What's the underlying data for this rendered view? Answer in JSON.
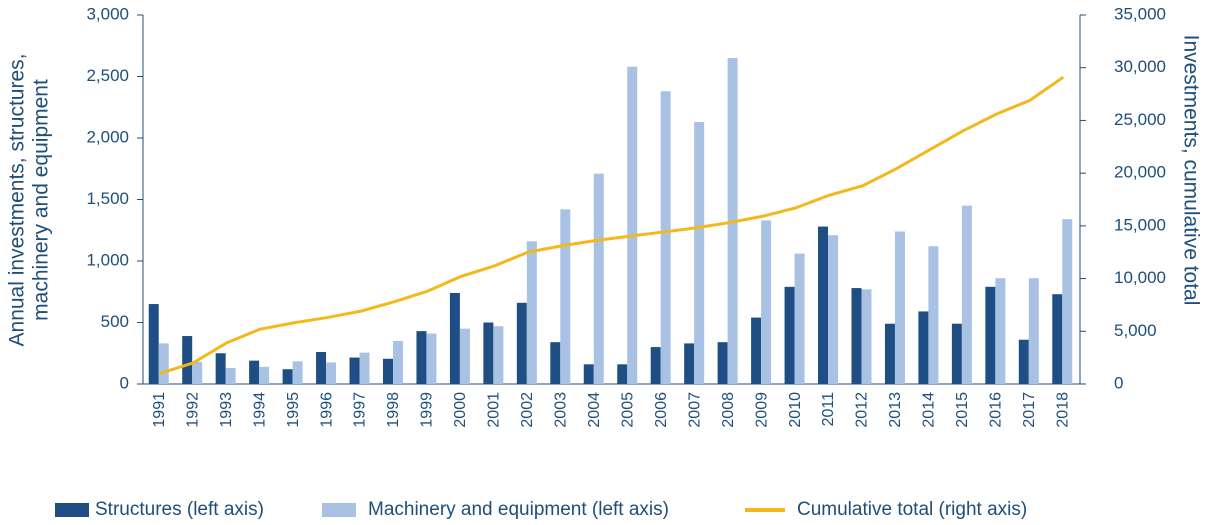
{
  "chart_data": {
    "type": "bar",
    "ylabel": [
      "Annual investments, structures,",
      "machinery and equipment"
    ],
    "y2label": "Investments, cumulative total",
    "categories": [
      "1991",
      "1992",
      "1993",
      "1994",
      "1995",
      "1996",
      "1997",
      "1998",
      "1999",
      "2000",
      "2001",
      "2002",
      "2003",
      "2004",
      "2005",
      "2006",
      "2007",
      "2008",
      "2009",
      "2010",
      "2011",
      "2012",
      "2013",
      "2014",
      "2015",
      "2016",
      "2017",
      "2018"
    ],
    "series": [
      {
        "name": "Structures (left axis)",
        "type": "bar",
        "color": "#1f4e85",
        "values": [
          650,
          390,
          250,
          190,
          120,
          260,
          215,
          205,
          430,
          740,
          500,
          660,
          340,
          160,
          160,
          300,
          330,
          340,
          540,
          790,
          1280,
          780,
          490,
          590,
          490,
          790,
          360,
          730
        ]
      },
      {
        "name": "Machinery and equipment (left axis)",
        "type": "bar",
        "color": "#a9c1e3",
        "values": [
          330,
          180,
          130,
          140,
          185,
          175,
          255,
          350,
          410,
          450,
          470,
          1160,
          1420,
          1710,
          2580,
          2380,
          2130,
          2650,
          1330,
          1060,
          1210,
          770,
          1240,
          1120,
          1450,
          860,
          860,
          1340
        ]
      },
      {
        "name": "Cumulative total (right axis)",
        "type": "line",
        "axis": "y2",
        "color": "#f2b81c",
        "values": [
          1000,
          2000,
          3900,
          5200,
          5800,
          6300,
          6900,
          7800,
          8800,
          10200,
          11200,
          12500,
          13100,
          13600,
          14000,
          14400,
          14800,
          15300,
          15900,
          16700,
          17900,
          18800,
          20400,
          22200,
          24000,
          25600,
          26900,
          29100
        ]
      }
    ],
    "ylim": [
      0,
      3000
    ],
    "yticks": [
      0,
      500,
      {
        "value": 1000,
        "label": "1,000"
      },
      {
        "value": 1500,
        "label": "1,500"
      },
      {
        "value": 2000,
        "label": "2,000"
      },
      {
        "value": 2500,
        "label": "2,500"
      },
      {
        "value": 3000,
        "label": "3,000"
      }
    ],
    "y2lim": [
      0,
      35000
    ],
    "y2ticks": [
      0,
      {
        "value": 5000,
        "label": "5,000"
      },
      {
        "value": 10000,
        "label": "10,000"
      },
      {
        "value": 15000,
        "label": "15,000"
      },
      {
        "value": 20000,
        "label": "20,000"
      },
      {
        "value": 25000,
        "label": "25,000"
      },
      {
        "value": 30000,
        "label": "30,000"
      },
      {
        "value": 35000,
        "label": "35,000"
      }
    ],
    "grid": false,
    "legend": "bottom"
  }
}
